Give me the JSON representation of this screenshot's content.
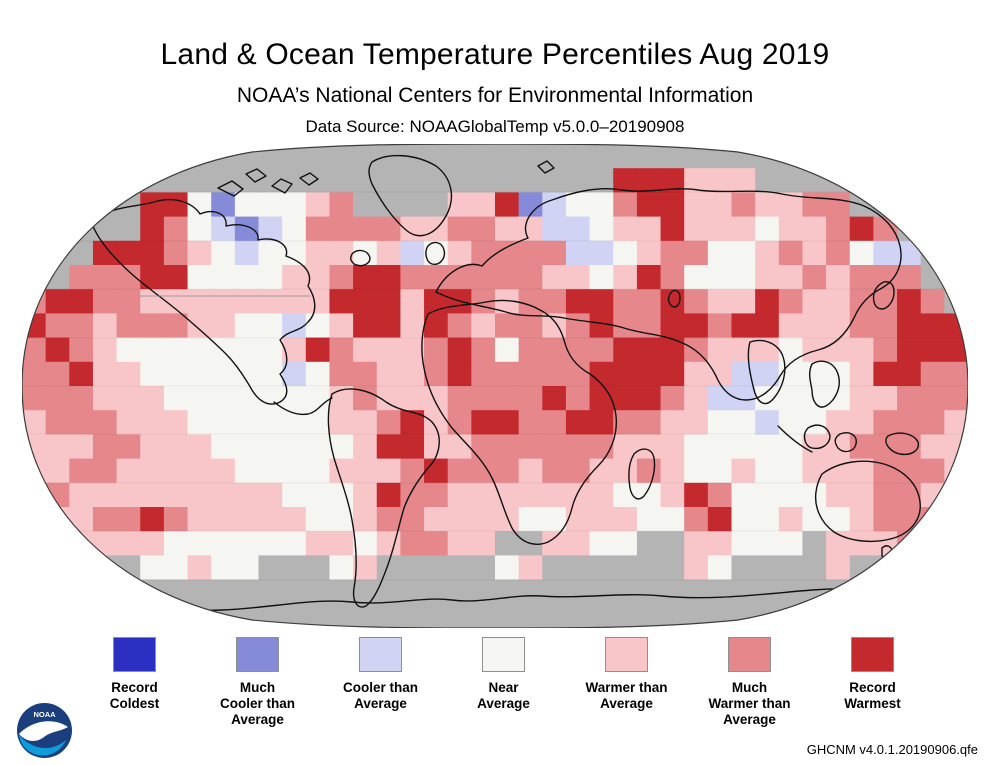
{
  "header": {
    "title": "Land & Ocean Temperature Percentiles Aug 2019",
    "subtitle": "NOAA’s National Centers for Environmental Information",
    "data_source": "Data Source: NOAAGlobalTemp v5.0.0–20190908"
  },
  "footer": {
    "dataset_version": "GHCNM v4.0.1.20190906.qfe",
    "logo_text": "NOAA"
  },
  "legend": {
    "items": [
      {
        "key": "record-coldest",
        "label": "Record\nColdest",
        "color": "#2b2fc2"
      },
      {
        "key": "much-cooler",
        "label": "Much\nCooler than\nAverage",
        "color": "#868bd9"
      },
      {
        "key": "cooler",
        "label": "Cooler than\nAverage",
        "color": "#d0d3f4"
      },
      {
        "key": "near-average",
        "label": "Near\nAverage",
        "color": "#f5f5f2"
      },
      {
        "key": "warmer",
        "label": "Warmer than\nAverage",
        "color": "#f8c6c9"
      },
      {
        "key": "much-warmer",
        "label": "Much\nWarmer than\nAverage",
        "color": "#e5878b"
      },
      {
        "key": "record-warmest",
        "label": "Record\nWarmest",
        "color": "#c4292d"
      }
    ]
  },
  "chart_data": {
    "type": "heatmap",
    "title": "Land & Ocean Temperature Percentiles Aug 2019",
    "subtitle": "NOAA’s National Centers for Environmental Information",
    "data_source": "Data Source: NOAAGlobalTemp v5.0.0–20190908",
    "projection": "Robinson world map, 5-degree gridded percentile categories",
    "categories": [
      "Record Coldest",
      "Much Cooler than Average",
      "Cooler than Average",
      "Near Average",
      "Warmer than Average",
      "Much Warmer than Average",
      "Record Warmest"
    ],
    "category_colors": [
      "#2b2fc2",
      "#868bd9",
      "#d0d3f4",
      "#f5f5f2",
      "#f8c6c9",
      "#e5878b",
      "#c4292d"
    ],
    "no_data_color": "#b4b4b4",
    "palette": {
      "0": "#2b2fc2",
      "1": "#868bd9",
      "2": "#d0d3f4",
      "3": "#f5f5f2",
      "4": "#f8c6c9",
      "5": "#e5878b",
      "6": "#c4292d",
      "g": "#b4b4b4"
    },
    "legend_of_grid_codes": {
      "0": "record coldest",
      "1": "much cooler",
      "2": "cooler",
      "3": "near average",
      "4": "warmer",
      "5": "much warmer",
      "6": "record warmest",
      "g": "no data / polar"
    },
    "grid_rows": [
      "gggggggggggggggggggggggggggggggggggggggg",
      "ggggggggggggggggggggggggg666444ggggggggg",
      "ggggg663133345gggg44612335664454455ggggg",
      "ggggg6532123555544554422344644434456 5ggg",
      "ggg666543233443423455552234553345453 22gg",
      "gg555663333445665555554434653334454555gg",
      "5665544444444666466545566556544654455 65g",
      "65545554433234664654554565566566444556 66",
      "56543333333465444565355556665444344456 66",
      "55644333333235544565555566664422333466 55",
      "5554443333333454445555656665422333344555",
      "4555444333333445645665566554433233445554",
      "4445544433333346644555555444333334455544",
      "4455444443333444565554554454334334445554",
      "5544444444433346554444444334653333445544",
      "4445565444443345544443344433563343345555",
      "44444433333344345544gg4433gg44333g444555",
      "ggggg33433ggg34ggggg34gggggg43gggg4ggggg",
      "gggggggggggggggggggggggggggggggggggggggg",
      "gggggggggggggggggggggggggggggggggggggggg"
    ]
  }
}
